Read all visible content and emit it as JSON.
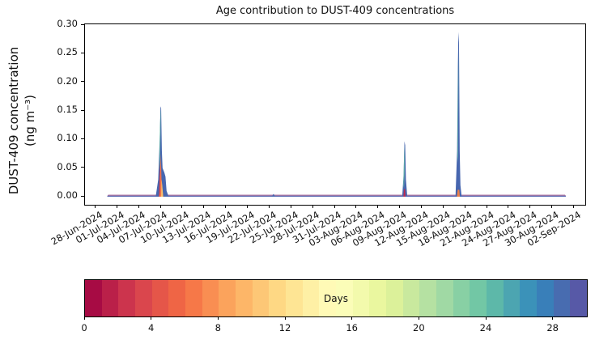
{
  "figure": {
    "title": "Age contribution to DUST-409 concentrations",
    "ylabel_line1": "DUST-409 concentration",
    "ylabel_line2": "(ng m⁻³)"
  },
  "chart_data": {
    "type": "area",
    "title": "Age contribution to DUST-409 concentrations",
    "ylabel": "DUST-409 concentration (ng m⁻³)",
    "x_unit": "days after 28-Jun-2024 (date axis)",
    "y_unit": "ng m-3",
    "axes": {
      "x_min_day": -1.5,
      "x_max_day": 67.5,
      "y_min": -0.01415,
      "y_max": 0.30142,
      "y_tick_values": [
        0.0,
        0.05,
        0.1,
        0.15,
        0.2,
        0.25,
        0.3
      ],
      "y_tick_labels": [
        "0.00",
        "0.05",
        "0.10",
        "0.15",
        "0.20",
        "0.25",
        "0.30"
      ],
      "x_tick_step_days": 3,
      "x_tick_labels": [
        "28-Jun-2024",
        "01-Jul-2024",
        "04-Jul-2024",
        "07-Jul-2024",
        "10-Jul-2024",
        "13-Jul-2024",
        "16-Jul-2024",
        "19-Jul-2024",
        "22-Jul-2024",
        "25-Jul-2024",
        "28-Jul-2024",
        "31-Jul-2024",
        "03-Aug-2024",
        "06-Aug-2024",
        "09-Aug-2024",
        "12-Aug-2024",
        "15-Aug-2024",
        "18-Aug-2024",
        "21-Aug-2024",
        "24-Aug-2024",
        "27-Aug-2024",
        "30-Aug-2024",
        "02-Sep-2024"
      ],
      "grid": false
    },
    "baseline_total": 0.003,
    "data_start_day": 1.6,
    "data_end_day": 64.8,
    "peaks": [
      {
        "date": "07-Jul-2024",
        "total": 0.158,
        "young_orange_component": 0.075,
        "dominant_age_days": 28
      },
      {
        "date": "22-Jul-2024",
        "total": 0.005,
        "dominant_age_days": 28
      },
      {
        "date": "10-Aug-2024",
        "total": 0.097,
        "fresh_red_component": 0.013,
        "dominant_age_days": 28
      },
      {
        "date": "17-Aug-2024",
        "total": 0.288,
        "young_orange_component": 0.012,
        "dominant_age_days": 28
      }
    ],
    "layers": [
      {
        "name": "baseline-band-old",
        "color": "#5565b0",
        "points": [
          [
            1.55,
            0.0002
          ],
          [
            1.7,
            0.0034
          ],
          [
            64.7,
            0.0034
          ],
          [
            64.85,
            0.0002
          ]
        ]
      },
      {
        "name": "baseline-band-fresh",
        "color": "#c87f9f",
        "base": 0.002,
        "points": [
          [
            1.6,
            0.0026
          ],
          [
            1.75,
            0.0034
          ],
          [
            64.65,
            0.0034
          ],
          [
            64.8,
            0.0026
          ]
        ]
      },
      {
        "name": "peak1-old-blue",
        "color": "#4766af",
        "points": [
          [
            8.25,
            0
          ],
          [
            8.6,
            0.03
          ],
          [
            8.8,
            0.1
          ],
          [
            8.92,
            0.158
          ],
          [
            9.0,
            0.155
          ],
          [
            9.1,
            0.08
          ],
          [
            9.2,
            0.05
          ],
          [
            9.45,
            0.042
          ],
          [
            9.6,
            0.035
          ],
          [
            9.75,
            0.01
          ],
          [
            10.05,
            0
          ]
        ]
      },
      {
        "name": "peak1-teal-sliver",
        "color": "#62bba8",
        "closed": true,
        "points": [
          [
            8.76,
            0.05
          ],
          [
            8.84,
            0.12
          ],
          [
            8.9,
            0.148
          ],
          [
            8.94,
            0.152
          ],
          [
            8.9,
            0.09
          ],
          [
            8.82,
            0.045
          ]
        ]
      },
      {
        "name": "peak1-young-orange",
        "color": "#f1764b",
        "points": [
          [
            8.68,
            0
          ],
          [
            8.88,
            0.045
          ],
          [
            8.95,
            0.075
          ],
          [
            9.05,
            0.03
          ],
          [
            9.28,
            0
          ]
        ]
      },
      {
        "name": "peak1-fresh-red-sliver",
        "color": "#cb3350",
        "closed": true,
        "points": [
          [
            8.7,
            0
          ],
          [
            8.8,
            0.05
          ],
          [
            8.86,
            0.065
          ],
          [
            8.84,
            0.01
          ],
          [
            8.78,
            0
          ]
        ]
      },
      {
        "name": "peak1-yellow-sliver",
        "color": "#fbc16d",
        "closed": true,
        "points": [
          [
            9.0,
            0
          ],
          [
            9.06,
            0.03
          ],
          [
            9.15,
            0.02
          ],
          [
            9.25,
            0.005
          ],
          [
            9.28,
            0
          ]
        ]
      },
      {
        "name": "bump-blue",
        "color": "#4766af",
        "points": [
          [
            24.25,
            0
          ],
          [
            24.5,
            0.005
          ],
          [
            24.75,
            0
          ]
        ]
      },
      {
        "name": "peak2-old-blue",
        "color": "#4766af",
        "points": [
          [
            42.25,
            0
          ],
          [
            42.45,
            0.04
          ],
          [
            42.56,
            0.097
          ],
          [
            42.66,
            0.09
          ],
          [
            42.76,
            0.03
          ],
          [
            42.95,
            0
          ]
        ]
      },
      {
        "name": "peak2-teal-sliver",
        "color": "#62bba8",
        "closed": true,
        "points": [
          [
            42.42,
            0.02
          ],
          [
            42.5,
            0.07
          ],
          [
            42.56,
            0.09
          ],
          [
            42.58,
            0.045
          ],
          [
            42.5,
            0.015
          ]
        ]
      },
      {
        "name": "peak2-fresh-red-base",
        "color": "#c02a4e",
        "points": [
          [
            42.42,
            0
          ],
          [
            42.5,
            0.013
          ],
          [
            42.64,
            0.013
          ],
          [
            42.7,
            0
          ]
        ]
      },
      {
        "name": "peak3-old-blue",
        "color": "#4766af",
        "points": [
          [
            49.6,
            0
          ],
          [
            49.82,
            0.08
          ],
          [
            49.93,
            0.23
          ],
          [
            50.0,
            0.288
          ],
          [
            50.08,
            0.27
          ],
          [
            50.18,
            0.08
          ],
          [
            50.28,
            0.02
          ],
          [
            50.45,
            0
          ]
        ]
      },
      {
        "name": "peak3-teal-sliver",
        "color": "#62bba8",
        "closed": true,
        "points": [
          [
            49.86,
            0.06
          ],
          [
            49.93,
            0.18
          ],
          [
            49.98,
            0.255
          ],
          [
            50.0,
            0.2
          ],
          [
            49.94,
            0.07
          ]
        ]
      },
      {
        "name": "peak3-young-orange-base",
        "color": "#ef8049",
        "points": [
          [
            49.8,
            0
          ],
          [
            49.9,
            0.012
          ],
          [
            50.12,
            0.012
          ],
          [
            50.2,
            0
          ]
        ]
      }
    ],
    "colorbar": {
      "label": "Days",
      "min": 0,
      "max": 30,
      "n_bins": 30,
      "tick_values": [
        0,
        4,
        8,
        12,
        16,
        20,
        24,
        28
      ],
      "colormap": "Spectral (discrete, 30 bins)",
      "colors": [
        "#a70b44",
        "#ba2049",
        "#cc344d",
        "#da464d",
        "#e55649",
        "#ef6545",
        "#f67848",
        "#f98e52",
        "#fba35c",
        "#fdb668",
        "#fdc776",
        "#fed884",
        "#fee594",
        "#fef0a5",
        "#fffab6",
        "#fbfdb8",
        "#f3faac",
        "#eaf79f",
        "#dcf19a",
        "#c9e99e",
        "#b5e1a2",
        "#a0d9a4",
        "#88d0a4",
        "#72c7a5",
        "#5db8a9",
        "#4ca5b1",
        "#3b92b9",
        "#397fb9",
        "#486cb0",
        "#5759a7"
      ]
    }
  }
}
